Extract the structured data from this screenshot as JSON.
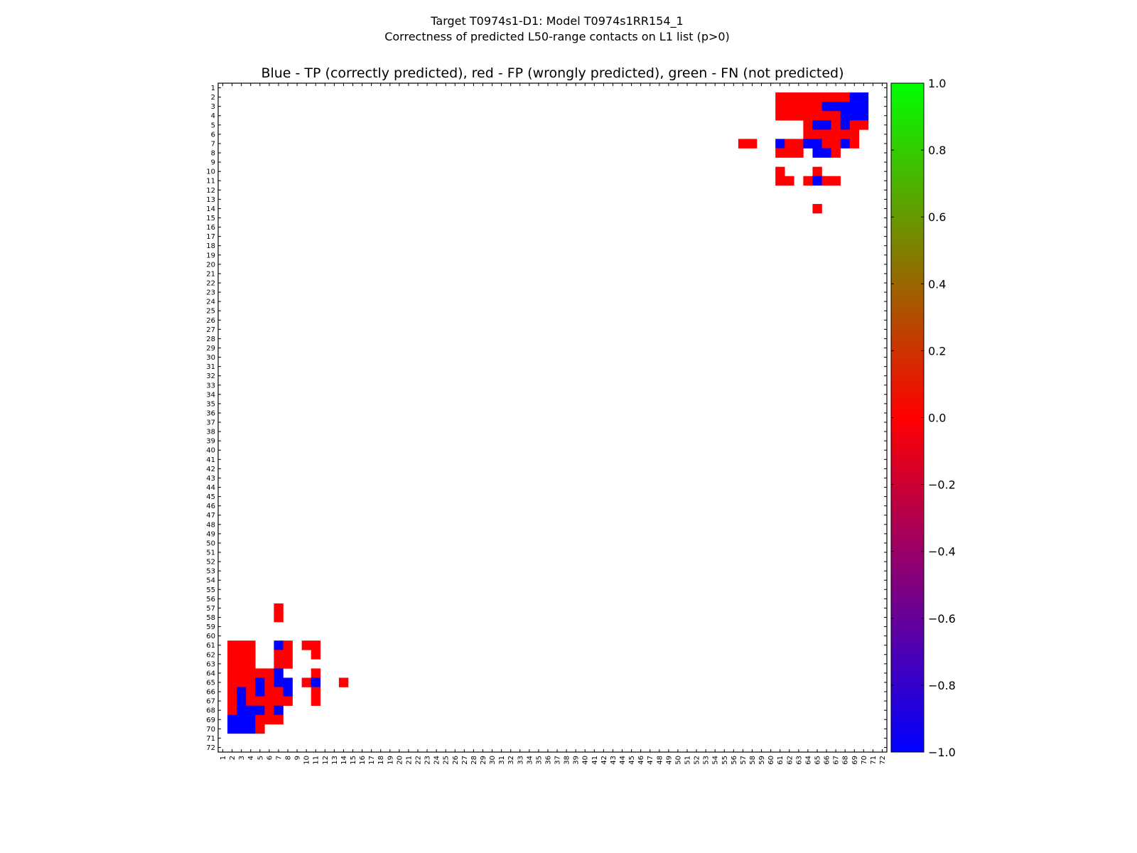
{
  "chart_data": {
    "type": "heatmap",
    "title": "Target T0974s1-D1: Model T0974s1RR154_1",
    "subtitle": "Correctness of predicted L50-range contacts on L1 list (p>0)",
    "plot_title": "Blue - TP (correctly predicted), red - FP (wrongly predicted), green - FN (not predicted)",
    "n_residues": 72,
    "x_range": [
      1,
      72
    ],
    "y_range": [
      1,
      72
    ],
    "symmetric": true,
    "colorbar": {
      "min": -1.0,
      "max": 1.0,
      "ticks": [
        "1.0",
        "0.8",
        "0.6",
        "0.4",
        "0.2",
        "0.0",
        "−0.2",
        "−0.4",
        "−0.6",
        "−0.8",
        "−1.0"
      ],
      "tick_values": [
        1.0,
        0.8,
        0.6,
        0.4,
        0.2,
        0.0,
        -0.2,
        -0.4,
        -0.6,
        -0.8,
        -1.0
      ],
      "colors": [
        "#0000ff",
        "#ff0000",
        "#00ff00"
      ]
    },
    "value_colors": {
      "-1": "#0000ff",
      "0": "#ff0000",
      "1": "#00ff00"
    },
    "contacts_i_j_value": [
      [
        2,
        61,
        0
      ],
      [
        2,
        62,
        0
      ],
      [
        2,
        63,
        0
      ],
      [
        2,
        64,
        0
      ],
      [
        2,
        65,
        0
      ],
      [
        2,
        66,
        0
      ],
      [
        2,
        67,
        0
      ],
      [
        2,
        68,
        0
      ],
      [
        2,
        69,
        -1
      ],
      [
        2,
        70,
        -1
      ],
      [
        3,
        61,
        0
      ],
      [
        3,
        62,
        0
      ],
      [
        3,
        63,
        0
      ],
      [
        3,
        64,
        0
      ],
      [
        3,
        65,
        0
      ],
      [
        3,
        66,
        -1
      ],
      [
        3,
        67,
        -1
      ],
      [
        3,
        68,
        -1
      ],
      [
        3,
        69,
        -1
      ],
      [
        3,
        70,
        -1
      ],
      [
        4,
        61,
        0
      ],
      [
        4,
        62,
        0
      ],
      [
        4,
        63,
        0
      ],
      [
        4,
        64,
        0
      ],
      [
        4,
        65,
        0
      ],
      [
        4,
        66,
        0
      ],
      [
        4,
        67,
        0
      ],
      [
        4,
        68,
        -1
      ],
      [
        4,
        69,
        -1
      ],
      [
        4,
        70,
        -1
      ],
      [
        5,
        64,
        0
      ],
      [
        5,
        65,
        -1
      ],
      [
        5,
        66,
        -1
      ],
      [
        5,
        67,
        0
      ],
      [
        5,
        68,
        -1
      ],
      [
        5,
        69,
        0
      ],
      [
        5,
        70,
        0
      ],
      [
        6,
        64,
        0
      ],
      [
        6,
        65,
        0
      ],
      [
        6,
        66,
        0
      ],
      [
        6,
        67,
        0
      ],
      [
        6,
        68,
        0
      ],
      [
        6,
        69,
        0
      ],
      [
        7,
        57,
        0
      ],
      [
        7,
        58,
        0
      ],
      [
        7,
        61,
        -1
      ],
      [
        7,
        62,
        0
      ],
      [
        7,
        63,
        0
      ],
      [
        7,
        64,
        -1
      ],
      [
        7,
        65,
        -1
      ],
      [
        7,
        66,
        0
      ],
      [
        7,
        67,
        0
      ],
      [
        7,
        68,
        -1
      ],
      [
        7,
        69,
        0
      ],
      [
        8,
        61,
        0
      ],
      [
        8,
        62,
        0
      ],
      [
        8,
        63,
        0
      ],
      [
        8,
        65,
        -1
      ],
      [
        8,
        66,
        -1
      ],
      [
        8,
        67,
        0
      ],
      [
        10,
        61,
        0
      ],
      [
        10,
        65,
        0
      ],
      [
        11,
        61,
        0
      ],
      [
        11,
        62,
        0
      ],
      [
        11,
        64,
        0
      ],
      [
        11,
        65,
        -1
      ],
      [
        11,
        66,
        0
      ],
      [
        11,
        67,
        0
      ],
      [
        14,
        65,
        0
      ]
    ]
  }
}
